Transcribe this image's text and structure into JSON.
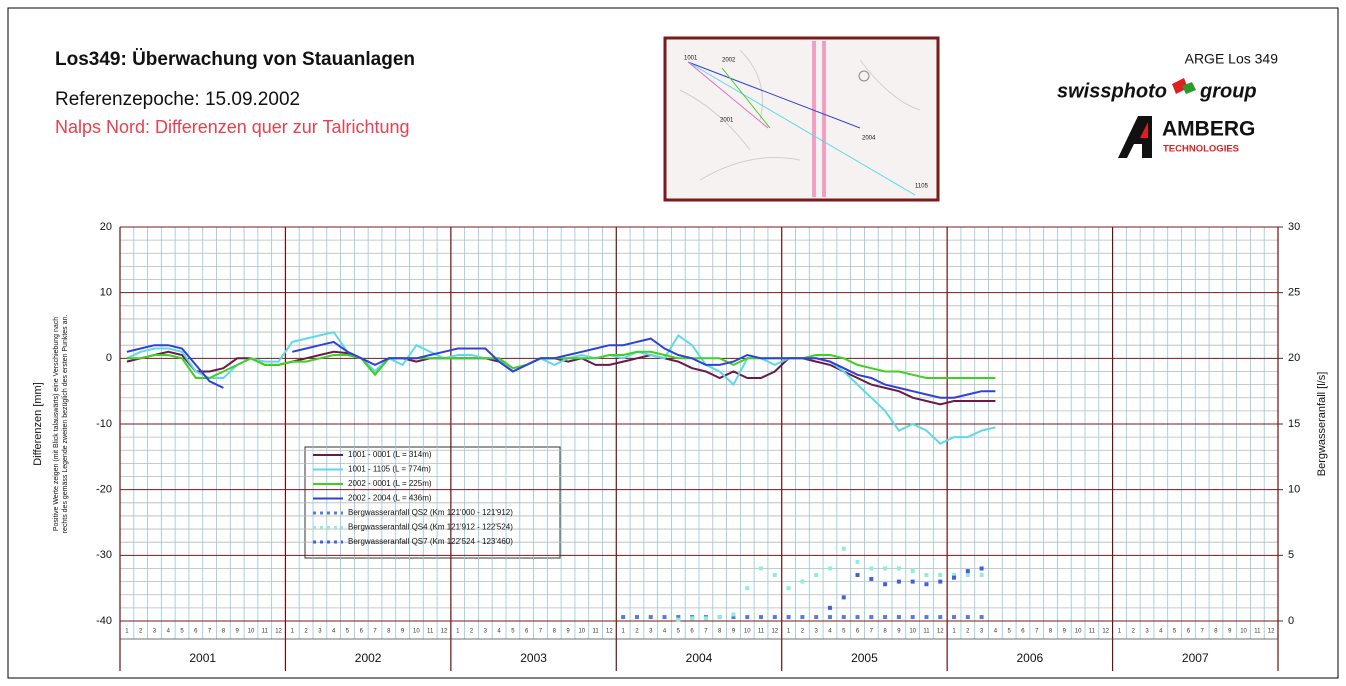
{
  "header": {
    "title": "Los349: Überwachung von Stauanlagen",
    "reference": "Referenzepoche: 15.09.2002",
    "subtitle": "Nalps Nord: Differenzen quer zur Talrichtung",
    "organisation": "ARGE Los 349",
    "logo_1a": "swissphoto",
    "logo_1b": "group",
    "logo_2a": "AMBERG",
    "logo_2b": "TECHNOLOGIES"
  },
  "inset": {
    "labels": [
      "1001",
      "2002",
      "2001",
      "2004",
      "1105"
    ]
  },
  "chart_data": {
    "type": "line",
    "y_label": "Differenzen [mm]",
    "y_note": [
      "Positive Werte zeigen (mit Blick talauswärts) eine Verschiebung nach",
      "rechts des gemäss Legende zweiten bezüglich des ersten Punktes an."
    ],
    "y2_label": "Bergwasseranfall [l/s]",
    "ylim": [
      -40,
      20
    ],
    "yticks": [
      -40,
      -30,
      -20,
      -10,
      0,
      10,
      20
    ],
    "y2lim": [
      0,
      30
    ],
    "y2ticks": [
      0,
      5,
      10,
      15,
      20,
      25,
      30
    ],
    "years": [
      2001,
      2002,
      2003,
      2004,
      2005,
      2006,
      2007
    ],
    "months": [
      1,
      2,
      3,
      4,
      5,
      6,
      7,
      8,
      9,
      10,
      11,
      12
    ],
    "grid": true,
    "x": [
      "2001-01",
      "2001-02",
      "2001-03",
      "2001-04",
      "2001-05",
      "2001-06",
      "2001-07",
      "2001-08",
      "2001-09",
      "2001-10",
      "2001-11",
      "2001-12",
      "2002-01",
      "2002-02",
      "2002-03",
      "2002-04",
      "2002-05",
      "2002-06",
      "2002-07",
      "2002-08",
      "2002-09",
      "2002-10",
      "2002-11",
      "2002-12",
      "2003-01",
      "2003-02",
      "2003-03",
      "2003-04",
      "2003-05",
      "2003-06",
      "2003-07",
      "2003-08",
      "2003-09",
      "2003-10",
      "2003-11",
      "2003-12",
      "2004-01",
      "2004-02",
      "2004-03",
      "2004-04",
      "2004-05",
      "2004-06",
      "2004-07",
      "2004-08",
      "2004-09",
      "2004-10",
      "2004-11",
      "2004-12",
      "2005-01",
      "2005-02",
      "2005-03",
      "2005-04",
      "2005-05",
      "2005-06",
      "2005-07",
      "2005-08",
      "2005-09",
      "2005-10",
      "2005-11",
      "2005-12",
      "2006-01",
      "2006-02",
      "2006-03",
      "2006-04"
    ],
    "series": [
      {
        "name": "1001 - 0001 (L = 314m)",
        "type": "line",
        "color": "#6a1a4a",
        "values": [
          -0.5,
          0,
          0.5,
          1,
          0.5,
          -2,
          -2,
          -1.5,
          0,
          0,
          -1,
          -1,
          -0.5,
          0,
          0.5,
          1,
          0.8,
          0,
          -2,
          0,
          0,
          -0.5,
          0,
          0,
          0,
          0,
          0,
          -0.5,
          -2,
          -1,
          0,
          0,
          -0.5,
          0,
          -1,
          -1,
          -0.5,
          0,
          0.5,
          0,
          -0.5,
          -1.5,
          -2,
          -3,
          -2,
          -3,
          -3,
          -2,
          0,
          0,
          -0.5,
          -1,
          -2,
          -3,
          -4,
          -4.5,
          -5,
          -6,
          -6.5,
          -7,
          -6.5,
          -6.5,
          -6.5,
          -6.5
        ]
      },
      {
        "name": "1001 - 1105 (L = 774m)",
        "type": "line",
        "color": "#5fd8e8",
        "values": [
          0,
          1,
          1.5,
          1.5,
          1,
          -2,
          -3,
          -3,
          -1,
          0,
          -0.5,
          -0.5,
          2.5,
          3,
          3.5,
          4,
          1,
          0,
          -2,
          0,
          -1,
          2,
          1,
          0,
          0.5,
          0.5,
          0,
          0,
          -2,
          -1,
          0,
          -1,
          0,
          0.5,
          0,
          0.5,
          0,
          1,
          0.5,
          0,
          3.5,
          2,
          -1,
          -2,
          -4,
          0,
          0,
          -1,
          0,
          0,
          0,
          -0.5,
          -2,
          -4,
          -6,
          -8,
          -11,
          -10,
          -11,
          -13,
          -12,
          -12,
          -11,
          -10.5
        ]
      },
      {
        "name": "2002 - 0001 (L = 225m)",
        "type": "line",
        "color": "#40d020",
        "values": [
          0,
          0,
          0.5,
          0.5,
          0,
          -3,
          -3,
          -2,
          -1,
          0,
          -1,
          -1,
          -0.5,
          -0.5,
          0,
          0.5,
          0.5,
          0,
          -2.5,
          0,
          0,
          0,
          0,
          0,
          0,
          0,
          0,
          0,
          -1.5,
          -1,
          0,
          0,
          0,
          0,
          0,
          0.5,
          0.5,
          1,
          1,
          0.5,
          0,
          0,
          0,
          0,
          -1,
          0,
          0,
          0,
          0,
          0,
          0.5,
          0.5,
          0,
          -1,
          -1.5,
          -2,
          -2,
          -2.5,
          -3,
          -3,
          -3,
          -3,
          -3,
          -3
        ]
      },
      {
        "name": "2002 - 2004 (L = 436m)",
        "type": "line",
        "color": "#3040d8",
        "values": [
          1,
          1.5,
          2,
          2,
          1.5,
          -1,
          -3.5,
          -4.5,
          null,
          null,
          null,
          null,
          1,
          1.5,
          2,
          2.5,
          1,
          0,
          -1,
          0,
          0,
          0,
          0.5,
          1,
          1.5,
          1.5,
          1.5,
          -0.5,
          -2,
          -1,
          0,
          0,
          0.5,
          1,
          1.5,
          2,
          2,
          2.5,
          3,
          1.5,
          0.5,
          0,
          -1,
          -1,
          -0.5,
          0.5,
          0,
          0,
          0,
          0,
          0,
          -0.5,
          -1.5,
          -2.5,
          -3,
          -4,
          -4.5,
          -5,
          -5.5,
          -6,
          -6,
          -5.5,
          -5,
          -5
        ]
      },
      {
        "name": "Bergwasseranfall QS2 (Km 121'000 - 121'912)",
        "type": "scatter",
        "axis": "y2",
        "color": "#5a7ad8",
        "values": [
          null,
          null,
          null,
          null,
          null,
          null,
          null,
          null,
          null,
          null,
          null,
          null,
          null,
          null,
          null,
          null,
          null,
          null,
          null,
          null,
          null,
          null,
          null,
          null,
          null,
          null,
          null,
          null,
          null,
          null,
          null,
          null,
          null,
          null,
          null,
          null,
          0.3,
          0.3,
          0.3,
          0.3,
          0.3,
          0.3,
          0.3,
          0.3,
          0.3,
          0.3,
          0.3,
          0.3,
          0.3,
          0.3,
          0.3,
          0.3,
          0.3,
          0.3,
          0.3,
          0.3,
          0.3,
          0.3,
          0.3,
          0.3,
          0.3,
          0.3,
          0.3,
          null
        ]
      },
      {
        "name": "Bergwasseranfall QS4 (Km 121'912 - 122'524)",
        "type": "scatter",
        "axis": "y2",
        "color": "#8eeedd",
        "values": [
          null,
          null,
          null,
          null,
          null,
          null,
          null,
          null,
          null,
          null,
          null,
          null,
          null,
          null,
          null,
          null,
          null,
          null,
          null,
          null,
          null,
          null,
          null,
          null,
          null,
          null,
          null,
          null,
          null,
          null,
          null,
          null,
          null,
          null,
          null,
          null,
          null,
          null,
          null,
          null,
          0.1,
          0.2,
          0.2,
          0.3,
          0.5,
          2.5,
          4,
          3.5,
          2.5,
          3,
          3.5,
          4,
          5.5,
          4.5,
          4,
          4,
          4,
          3.8,
          3.5,
          3.5,
          3.5,
          3.5,
          3.5,
          null
        ]
      },
      {
        "name": "Bergwasseranfall QS7 (Km 122'524 - 123'460)",
        "type": "scatter",
        "axis": "y2",
        "color": "#4060e0",
        "values": [
          null,
          null,
          null,
          null,
          null,
          null,
          null,
          null,
          null,
          null,
          null,
          null,
          null,
          null,
          null,
          null,
          null,
          null,
          null,
          null,
          null,
          null,
          null,
          null,
          null,
          null,
          null,
          null,
          null,
          null,
          null,
          null,
          null,
          null,
          null,
          null,
          null,
          null,
          null,
          null,
          null,
          null,
          null,
          null,
          null,
          null,
          null,
          null,
          null,
          null,
          null,
          1,
          1.8,
          3.5,
          3.2,
          2.8,
          3,
          3,
          2.8,
          3,
          3.3,
          3.8,
          4,
          null
        ]
      }
    ]
  }
}
